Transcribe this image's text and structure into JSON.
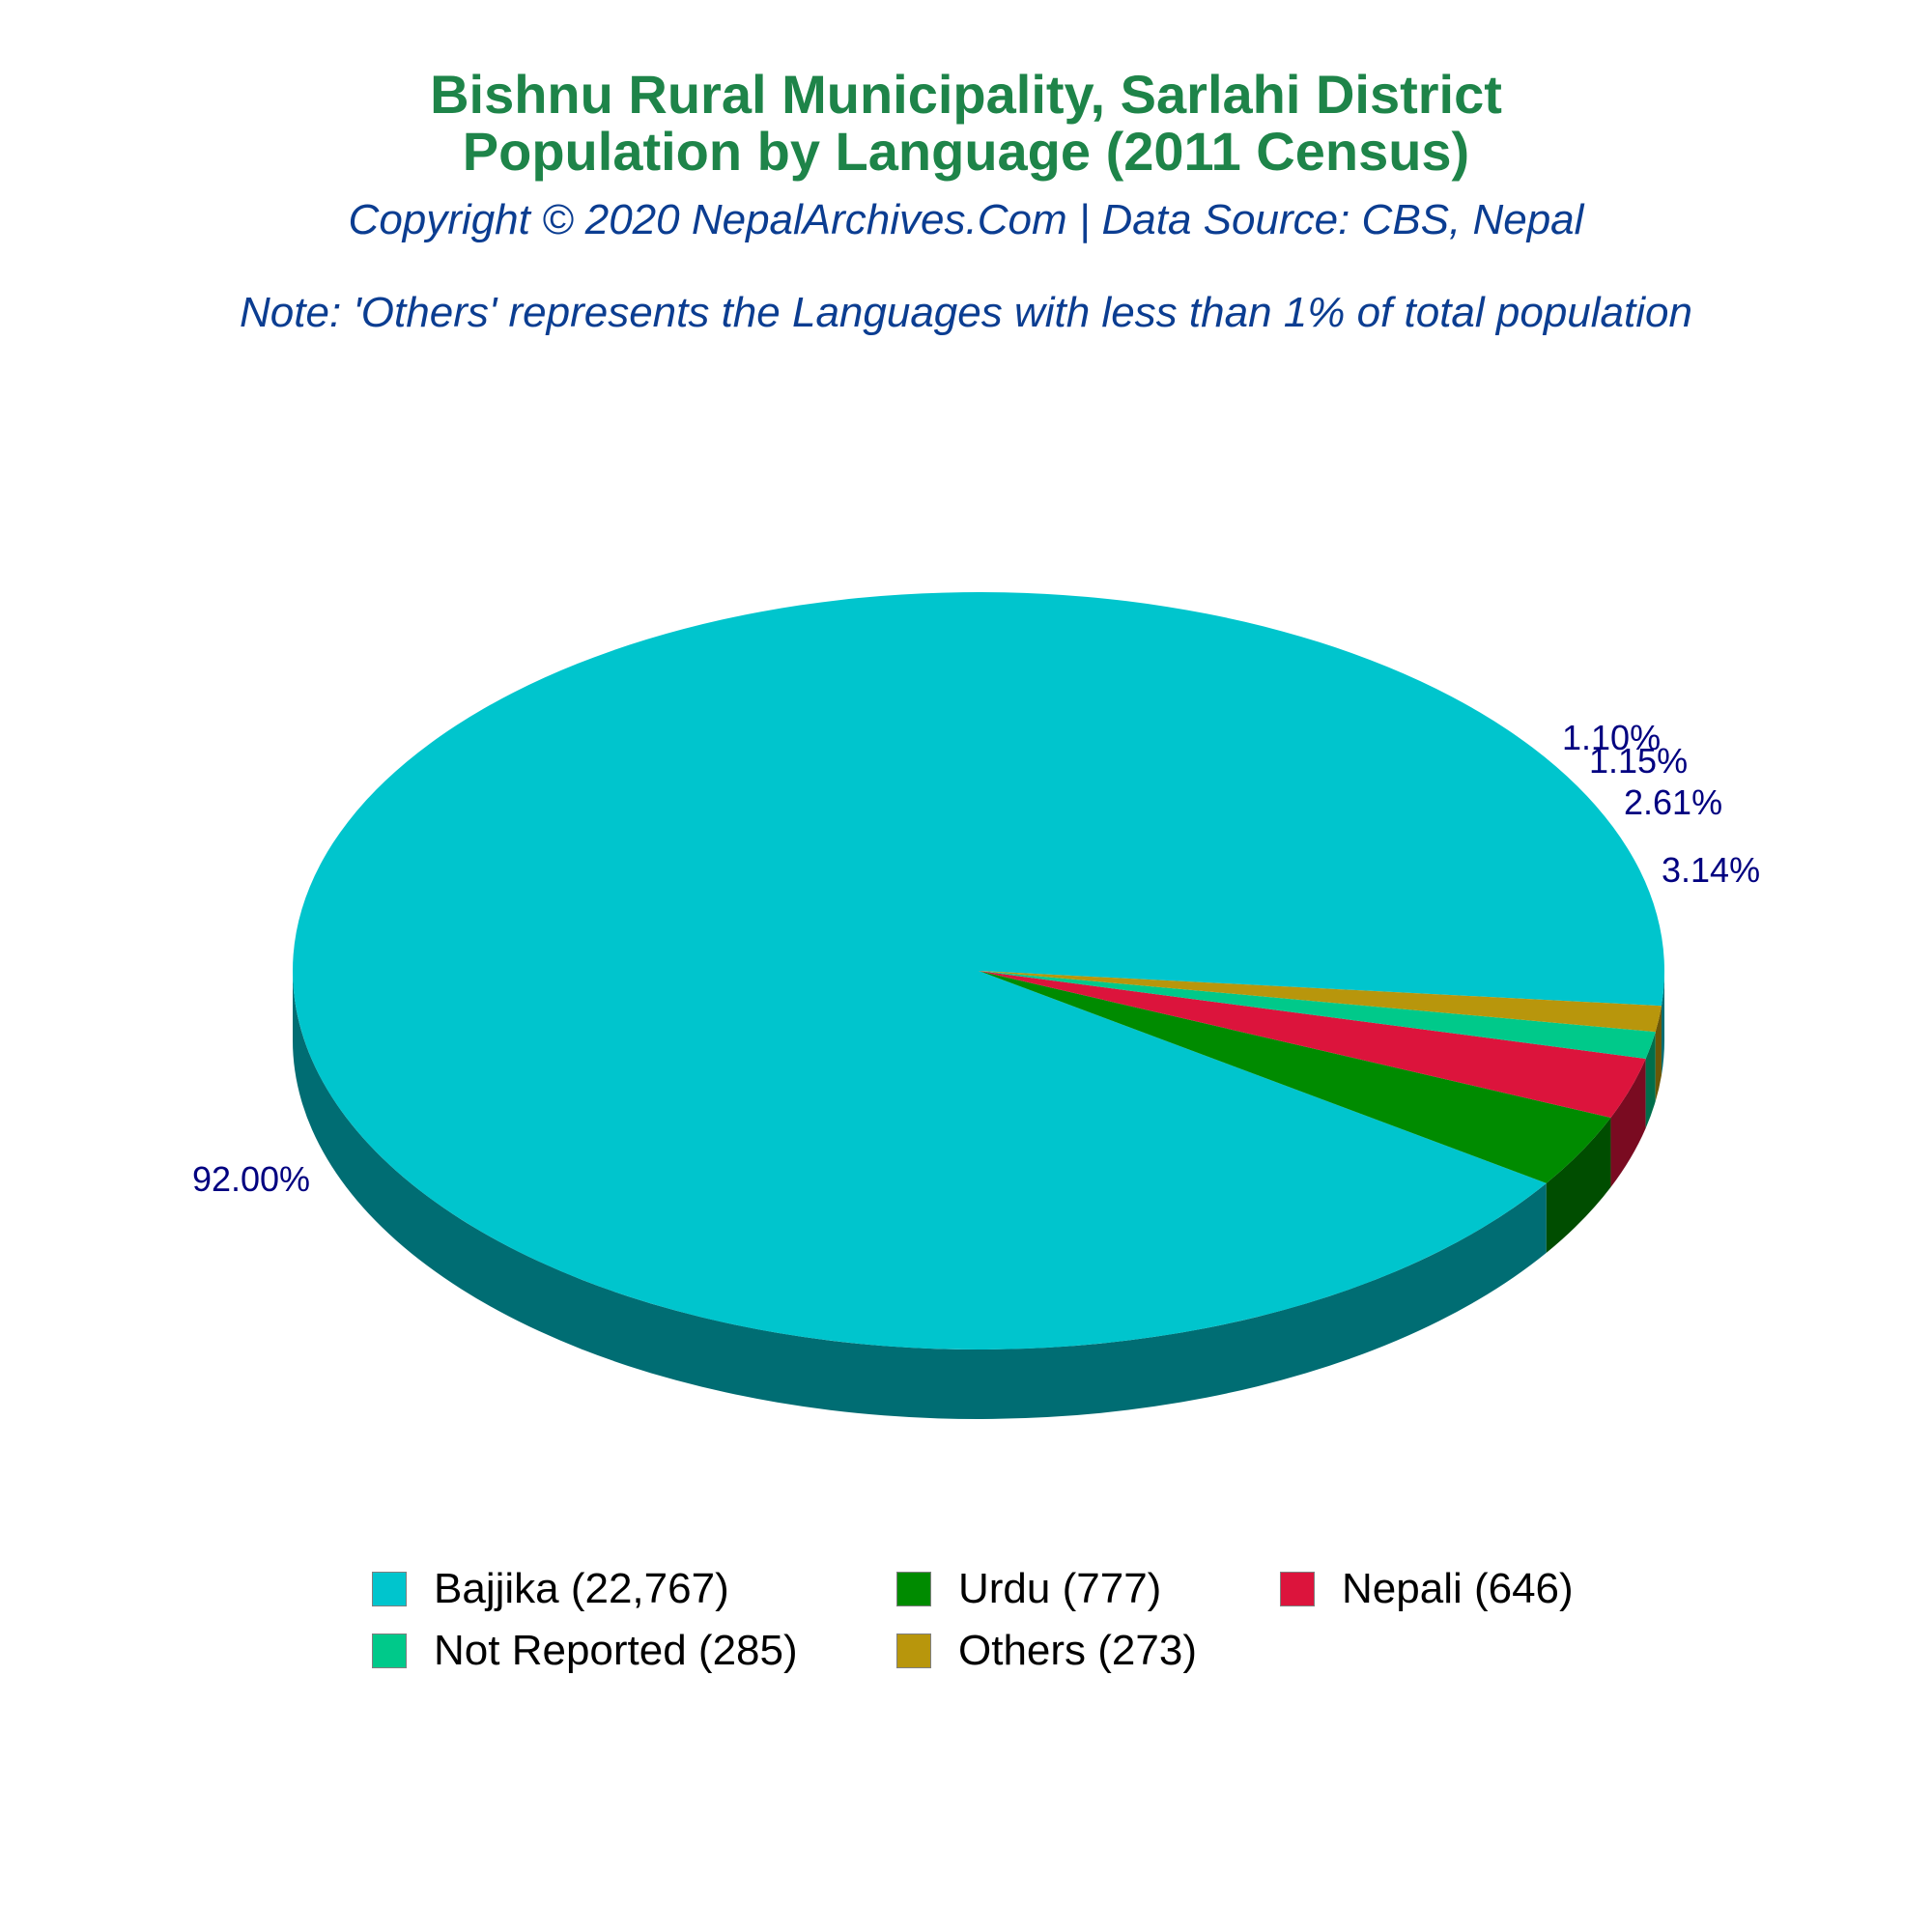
{
  "chart_data": {
    "type": "pie",
    "title_lines": [
      "Bishnu Rural Municipality, Sarlahi District",
      "Population by Language (2011 Census)"
    ],
    "subtitle": "Copyright © 2020 NepalArchives.Com | Data Source: CBS, Nepal",
    "note": "Note: 'Others' represents the Languages with less than 1% of total population",
    "legend_position": "bottom",
    "three_d": true,
    "slices": [
      {
        "name": "Bajjika",
        "value": 22767,
        "percent": 92.0,
        "percent_label": "92.00%",
        "legend_label": "Bajjika (22,767)",
        "color": "#00c5cd",
        "side_color": "#006d73"
      },
      {
        "name": "Urdu",
        "value": 777,
        "percent": 3.14,
        "percent_label": "3.14%",
        "legend_label": "Urdu (777)",
        "color": "#008b00",
        "side_color": "#004d00"
      },
      {
        "name": "Nepali",
        "value": 646,
        "percent": 2.61,
        "percent_label": "2.61%",
        "legend_label": "Nepali (646)",
        "color": "#dc143c",
        "side_color": "#7a0b21"
      },
      {
        "name": "Not Reported",
        "value": 285,
        "percent": 1.15,
        "percent_label": "1.15%",
        "legend_label": "Not Reported (285)",
        "color": "#00c98a",
        "side_color": "#006e4b"
      },
      {
        "name": "Others",
        "value": 273,
        "percent": 1.1,
        "percent_label": "1.10%",
        "legend_label": "Others (273)",
        "color": "#b8960c",
        "side_color": "#6b5707"
      }
    ]
  }
}
